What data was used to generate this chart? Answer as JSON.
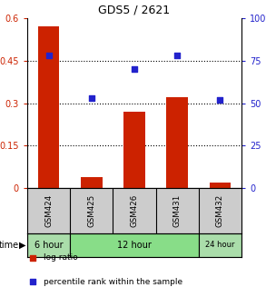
{
  "title": "GDS5 / 2621",
  "samples": [
    "GSM424",
    "GSM425",
    "GSM426",
    "GSM431",
    "GSM432"
  ],
  "log_ratio": [
    0.57,
    0.04,
    0.27,
    0.32,
    0.02
  ],
  "percentile_rank": [
    78,
    53,
    70,
    78,
    52
  ],
  "bar_color": "#cc2200",
  "dot_color": "#2222cc",
  "left_ylim": [
    0,
    0.6
  ],
  "left_yticks": [
    0,
    0.15,
    0.3,
    0.45,
    0.6
  ],
  "left_yticklabels": [
    "0",
    "0.15",
    "0.3",
    "0.45",
    "0.6"
  ],
  "right_ylim": [
    0,
    100
  ],
  "right_yticks": [
    0,
    25,
    50,
    75,
    100
  ],
  "right_yticklabels": [
    "0",
    "25",
    "50",
    "75",
    "100%"
  ],
  "time_groups": [
    {
      "label": "6 hour",
      "start": 0,
      "end": 0,
      "color": "#aaddaa"
    },
    {
      "label": "12 hour",
      "start": 1,
      "end": 3,
      "color": "#88dd88"
    },
    {
      "label": "24 hour",
      "start": 4,
      "end": 4,
      "color": "#aaddaa"
    }
  ],
  "legend_items": [
    {
      "label": "log ratio",
      "color": "#cc2200"
    },
    {
      "label": "percentile rank within the sample",
      "color": "#2222cc"
    }
  ],
  "bg_color": "#ffffff",
  "sample_bg": "#cccccc"
}
